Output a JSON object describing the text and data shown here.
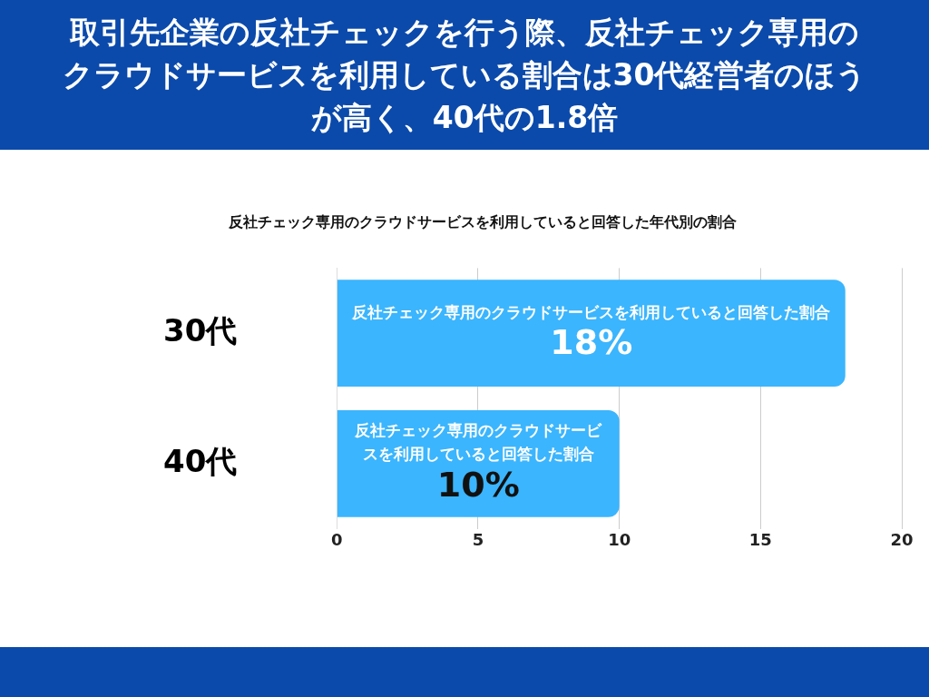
{
  "chart_data": {
    "type": "bar",
    "orientation": "horizontal",
    "title": "取引先企業の反社チェックを行う際、反社チェック専用のクラウドサービスを利用している割合は30代経営者のほうが高く、40代の1.8倍",
    "subtitle": "反社チェック専用のクラウドサービスを利用していると回答した年代別の割合",
    "categories": [
      "30代",
      "40代"
    ],
    "series": [
      {
        "name": "反社チェック専用のクラウドサービスを利用していると回答した割合",
        "color": "#3bb5fd",
        "values": [
          18,
          10
        ],
        "value_labels": [
          "18%",
          "10%"
        ]
      }
    ],
    "xlim": [
      0,
      20
    ],
    "xticks": [
      0,
      5,
      10,
      15,
      20
    ],
    "grid": "x",
    "legend": false
  }
}
